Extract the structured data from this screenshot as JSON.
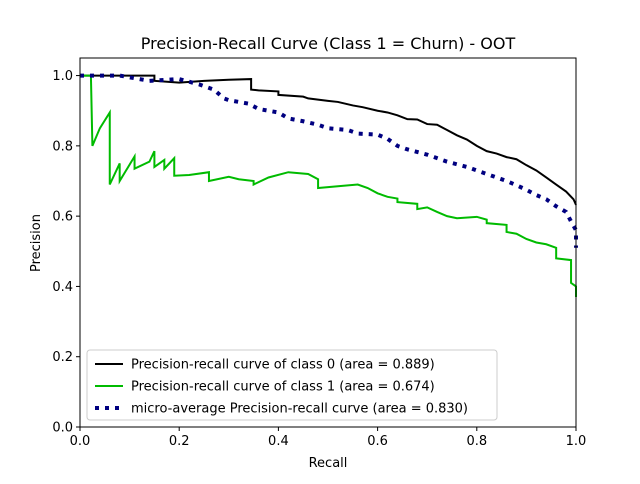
{
  "chart_data": {
    "type": "line",
    "title": "Precision-Recall Curve (Class 1 = Churn) - OOT",
    "xlabel": "Recall",
    "ylabel": "Precision",
    "xlim": [
      0.0,
      1.0
    ],
    "ylim": [
      0.0,
      1.05
    ],
    "xticks": [
      0.0,
      0.2,
      0.4,
      0.6,
      0.8,
      1.0
    ],
    "xtick_labels": [
      "0.0",
      "0.2",
      "0.4",
      "0.6",
      "0.8",
      "1.0"
    ],
    "yticks": [
      0.0,
      0.2,
      0.4,
      0.6,
      0.8,
      1.0
    ],
    "ytick_labels": [
      "0.0",
      "0.2",
      "0.4",
      "0.6",
      "0.8",
      "1.0"
    ],
    "grid": false,
    "legend_position": "lower-left",
    "series": [
      {
        "name": "Precision-recall curve of class 0 (area = 0.889)",
        "color": "#000000",
        "style": "solid",
        "points": [
          [
            0.0,
            1.0
          ],
          [
            0.15,
            1.0
          ],
          [
            0.15,
            0.985
          ],
          [
            0.2,
            0.98
          ],
          [
            0.25,
            0.985
          ],
          [
            0.3,
            0.988
          ],
          [
            0.345,
            0.99
          ],
          [
            0.345,
            0.96
          ],
          [
            0.36,
            0.958
          ],
          [
            0.4,
            0.955
          ],
          [
            0.4,
            0.945
          ],
          [
            0.45,
            0.94
          ],
          [
            0.46,
            0.935
          ],
          [
            0.5,
            0.928
          ],
          [
            0.52,
            0.925
          ],
          [
            0.55,
            0.915
          ],
          [
            0.57,
            0.91
          ],
          [
            0.6,
            0.9
          ],
          [
            0.62,
            0.895
          ],
          [
            0.64,
            0.887
          ],
          [
            0.66,
            0.876
          ],
          [
            0.68,
            0.875
          ],
          [
            0.7,
            0.862
          ],
          [
            0.72,
            0.86
          ],
          [
            0.74,
            0.845
          ],
          [
            0.76,
            0.83
          ],
          [
            0.78,
            0.818
          ],
          [
            0.8,
            0.8
          ],
          [
            0.82,
            0.785
          ],
          [
            0.84,
            0.778
          ],
          [
            0.86,
            0.768
          ],
          [
            0.88,
            0.762
          ],
          [
            0.9,
            0.745
          ],
          [
            0.92,
            0.73
          ],
          [
            0.94,
            0.71
          ],
          [
            0.96,
            0.69
          ],
          [
            0.98,
            0.67
          ],
          [
            0.995,
            0.648
          ],
          [
            1.0,
            0.632
          ]
        ]
      },
      {
        "name": "Precision-recall curve of class 1 (area = 0.674)",
        "color": "#00bb00",
        "style": "solid",
        "points": [
          [
            0.0,
            1.0
          ],
          [
            0.022,
            1.0
          ],
          [
            0.025,
            0.8
          ],
          [
            0.04,
            0.85
          ],
          [
            0.06,
            0.895
          ],
          [
            0.06,
            0.69
          ],
          [
            0.08,
            0.75
          ],
          [
            0.08,
            0.7
          ],
          [
            0.11,
            0.77
          ],
          [
            0.11,
            0.735
          ],
          [
            0.14,
            0.755
          ],
          [
            0.15,
            0.785
          ],
          [
            0.15,
            0.74
          ],
          [
            0.17,
            0.76
          ],
          [
            0.17,
            0.735
          ],
          [
            0.19,
            0.765
          ],
          [
            0.19,
            0.715
          ],
          [
            0.22,
            0.717
          ],
          [
            0.26,
            0.725
          ],
          [
            0.26,
            0.7
          ],
          [
            0.3,
            0.712
          ],
          [
            0.32,
            0.705
          ],
          [
            0.35,
            0.7
          ],
          [
            0.35,
            0.69
          ],
          [
            0.38,
            0.71
          ],
          [
            0.42,
            0.725
          ],
          [
            0.46,
            0.72
          ],
          [
            0.48,
            0.705
          ],
          [
            0.48,
            0.68
          ],
          [
            0.52,
            0.685
          ],
          [
            0.56,
            0.69
          ],
          [
            0.58,
            0.68
          ],
          [
            0.6,
            0.665
          ],
          [
            0.62,
            0.655
          ],
          [
            0.64,
            0.65
          ],
          [
            0.64,
            0.64
          ],
          [
            0.68,
            0.635
          ],
          [
            0.68,
            0.62
          ],
          [
            0.7,
            0.625
          ],
          [
            0.72,
            0.612
          ],
          [
            0.74,
            0.6
          ],
          [
            0.76,
            0.594
          ],
          [
            0.8,
            0.598
          ],
          [
            0.82,
            0.59
          ],
          [
            0.82,
            0.58
          ],
          [
            0.86,
            0.575
          ],
          [
            0.86,
            0.555
          ],
          [
            0.88,
            0.55
          ],
          [
            0.9,
            0.535
          ],
          [
            0.92,
            0.525
          ],
          [
            0.94,
            0.52
          ],
          [
            0.96,
            0.51
          ],
          [
            0.96,
            0.48
          ],
          [
            0.99,
            0.475
          ],
          [
            0.99,
            0.41
          ],
          [
            1.0,
            0.4
          ],
          [
            1.0,
            0.37
          ]
        ]
      },
      {
        "name": "micro-average Precision-recall curve (area = 0.830)",
        "color": "#000080",
        "style": "dotted",
        "points": [
          [
            0.0,
            1.0
          ],
          [
            0.08,
            1.0
          ],
          [
            0.1,
            0.995
          ],
          [
            0.14,
            0.985
          ],
          [
            0.2,
            0.99
          ],
          [
            0.24,
            0.975
          ],
          [
            0.27,
            0.96
          ],
          [
            0.29,
            0.935
          ],
          [
            0.3,
            0.93
          ],
          [
            0.34,
            0.92
          ],
          [
            0.36,
            0.905
          ],
          [
            0.4,
            0.895
          ],
          [
            0.42,
            0.878
          ],
          [
            0.45,
            0.87
          ],
          [
            0.48,
            0.86
          ],
          [
            0.5,
            0.85
          ],
          [
            0.54,
            0.845
          ],
          [
            0.56,
            0.835
          ],
          [
            0.6,
            0.832
          ],
          [
            0.62,
            0.82
          ],
          [
            0.64,
            0.8
          ],
          [
            0.66,
            0.79
          ],
          [
            0.7,
            0.775
          ],
          [
            0.72,
            0.765
          ],
          [
            0.74,
            0.755
          ],
          [
            0.78,
            0.74
          ],
          [
            0.8,
            0.73
          ],
          [
            0.82,
            0.72
          ],
          [
            0.84,
            0.71
          ],
          [
            0.86,
            0.7
          ],
          [
            0.88,
            0.688
          ],
          [
            0.9,
            0.675
          ],
          [
            0.92,
            0.66
          ],
          [
            0.94,
            0.648
          ],
          [
            0.96,
            0.628
          ],
          [
            0.98,
            0.612
          ],
          [
            0.99,
            0.585
          ],
          [
            1.0,
            0.56
          ],
          [
            1.0,
            0.51
          ]
        ]
      }
    ]
  }
}
